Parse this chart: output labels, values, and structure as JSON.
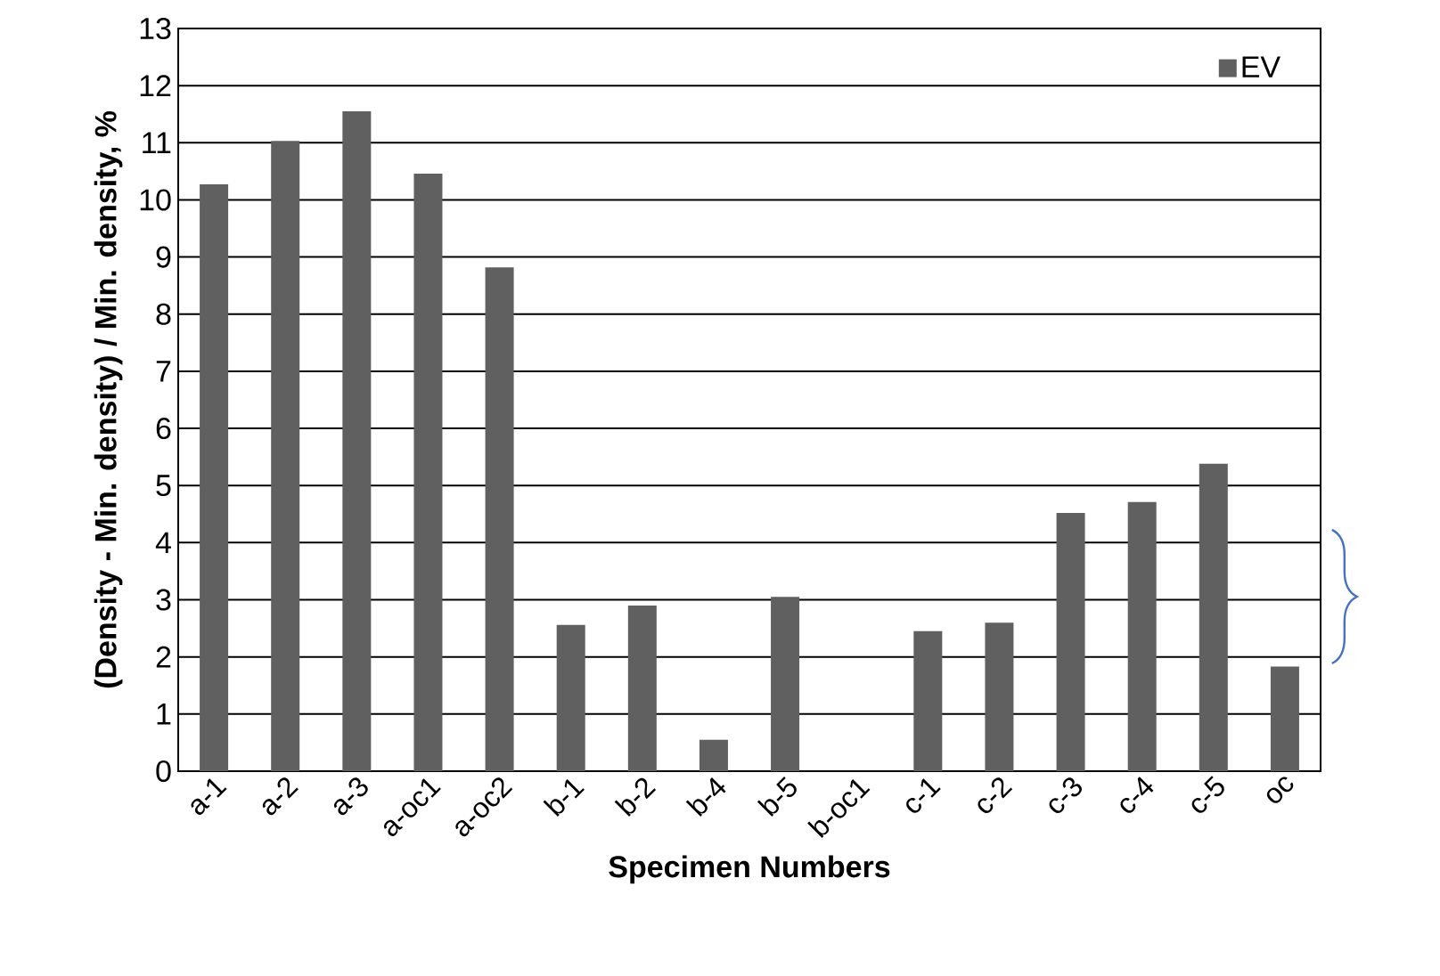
{
  "chart_data": {
    "type": "bar",
    "xlabel": "Specimen Numbers",
    "ylabel": "(Density - Min. density) / Min. density, %",
    "categories": [
      "a-1",
      "a-2",
      "a-3",
      "a-oc1",
      "a-oc2",
      "b-1",
      "b-2",
      "b-4",
      "b-5",
      "b-oc1",
      "c-1",
      "c-2",
      "c-3",
      "c-4",
      "c-5",
      "oc"
    ],
    "series": [
      {
        "name": "EV",
        "color": "#606060",
        "values": [
          10.27,
          11.03,
          11.55,
          10.46,
          8.82,
          2.56,
          2.9,
          0.55,
          3.05,
          null,
          2.45,
          2.6,
          4.52,
          4.71,
          5.38,
          1.83
        ]
      }
    ],
    "ylim": [
      0,
      13
    ],
    "yticks": [
      0,
      1,
      2,
      3,
      4,
      5,
      6,
      7,
      8,
      9,
      10,
      11,
      12,
      13
    ],
    "grid": "y",
    "legend": "top right"
  }
}
